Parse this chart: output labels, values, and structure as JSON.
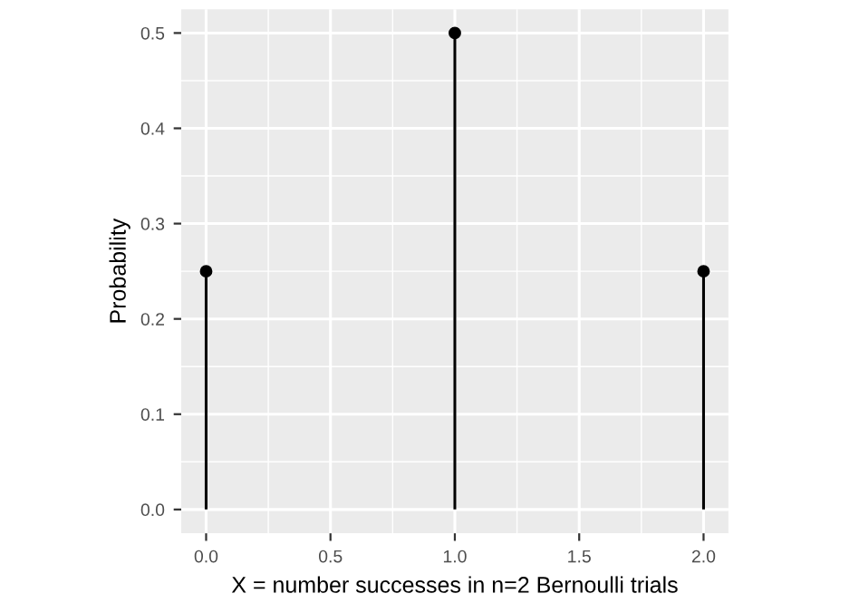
{
  "chart_data": {
    "type": "lollipop",
    "xlabel": "X = number successes in n=2 Bernoulli trials",
    "ylabel": "Probability",
    "x": [
      0,
      1,
      2
    ],
    "values": [
      0.25,
      0.5,
      0.25
    ],
    "color": "#000000",
    "marker": "circle",
    "grid": true,
    "xlim": [
      -0.1,
      2.1
    ],
    "ylim": [
      -0.025,
      0.525
    ],
    "xticks": [
      {
        "value": 0,
        "label": "0.0"
      },
      {
        "value": 0.5,
        "label": "0.5"
      },
      {
        "value": 1,
        "label": "1.0"
      },
      {
        "value": 1.5,
        "label": "1.5"
      },
      {
        "value": 2,
        "label": "2.0"
      }
    ],
    "yticks": [
      {
        "value": 0,
        "label": "0.0"
      },
      {
        "value": 0.1,
        "label": "0.1"
      },
      {
        "value": 0.2,
        "label": "0.2"
      },
      {
        "value": 0.3,
        "label": "0.3"
      },
      {
        "value": 0.4,
        "label": "0.4"
      },
      {
        "value": 0.5,
        "label": "0.5"
      }
    ]
  }
}
